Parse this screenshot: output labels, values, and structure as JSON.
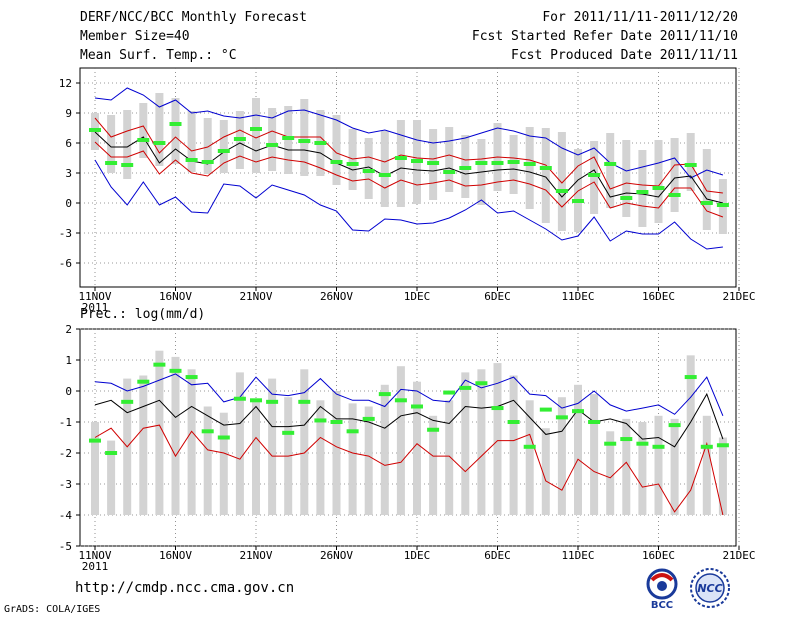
{
  "header": {
    "title": "DERF/NCC/BCC Monthly Forecast",
    "member_size": "Member Size=40",
    "variable1": "Mean Surf. Temp.: °C",
    "period": "For 2011/11/11-2011/12/20",
    "started": "Fcst Started Refer Date 2011/11/10",
    "produced": "Fcst Produced Date 2011/11/11"
  },
  "footer": {
    "url": "http://cmdp.ncc.cma.gov.cn",
    "grads": "GrADS: COLA/IGES",
    "logo1_text": "BCC",
    "logo2_text": "NCC"
  },
  "colors": {
    "max": "#0000d0",
    "upper": "#d00000",
    "mean": "#000000",
    "box": "#d3d3d3",
    "obs": "#33ee33"
  },
  "chart_data": [
    {
      "type": "line",
      "title": "Mean Surf. Temp.: °C",
      "x_tick_labels": [
        "11NOV",
        "16NOV",
        "21NOV",
        "26NOV",
        "1DEC",
        "6DEC",
        "11DEC",
        "16DEC",
        "21DEC"
      ],
      "x_year_label": "2011",
      "y_ticks": [
        12,
        9,
        6,
        3,
        0,
        -3,
        -6
      ],
      "ylim": [
        -8.4,
        13.5
      ],
      "days": 40,
      "series": [
        {
          "name": "max",
          "values": [
            10.5,
            10.3,
            11.5,
            10.8,
            9.6,
            10.3,
            9.0,
            9.2,
            8.7,
            8.5,
            8.8,
            8.5,
            9.2,
            9.3,
            8.8,
            8.3,
            7.5,
            7.0,
            7.3,
            6.8,
            6.3,
            6.0,
            6.2,
            6.5,
            7.0,
            7.5,
            7.2,
            6.7,
            6.5,
            5.5,
            4.8,
            5.5,
            4.0,
            3.2,
            3.6,
            4.0,
            4.5,
            2.5,
            3.3,
            2.8
          ]
        },
        {
          "name": "upper",
          "values": [
            8.5,
            6.6,
            7.2,
            7.7,
            5.0,
            6.6,
            5.2,
            5.6,
            6.6,
            7.3,
            6.5,
            7.2,
            6.6,
            6.6,
            6.6,
            5.0,
            4.4,
            4.6,
            4.1,
            4.8,
            4.5,
            4.4,
            4.8,
            4.3,
            4.4,
            4.6,
            4.5,
            4.3,
            3.8,
            2.0,
            3.7,
            4.6,
            1.4,
            2.0,
            1.8,
            1.7,
            3.8,
            3.9,
            1.2,
            1.0
          ]
        },
        {
          "name": "mean",
          "values": [
            7.1,
            5.6,
            5.6,
            6.6,
            4.0,
            5.4,
            4.2,
            3.9,
            5.1,
            6.0,
            5.2,
            5.8,
            5.3,
            5.3,
            5.0,
            4.0,
            3.3,
            3.6,
            2.7,
            3.5,
            3.3,
            3.2,
            3.5,
            2.9,
            3.1,
            3.3,
            3.4,
            3.1,
            2.6,
            0.6,
            2.3,
            3.3,
            0.6,
            1.0,
            0.9,
            0.6,
            2.5,
            2.7,
            0.4,
            0.0
          ]
        },
        {
          "name": "lower",
          "values": [
            6.1,
            4.6,
            4.6,
            5.2,
            2.9,
            4.3,
            3.0,
            2.7,
            4.0,
            4.7,
            4.1,
            4.6,
            4.3,
            4.1,
            3.5,
            2.8,
            2.2,
            2.4,
            1.5,
            2.3,
            1.8,
            2.0,
            2.3,
            1.7,
            1.8,
            2.1,
            2.3,
            1.9,
            1.3,
            -0.4,
            1.2,
            2.1,
            -0.5,
            0.0,
            -0.3,
            -0.5,
            1.5,
            1.5,
            -0.8,
            -1.4
          ]
        },
        {
          "name": "min",
          "values": [
            4.3,
            1.6,
            -0.2,
            2.1,
            -0.2,
            0.6,
            -0.9,
            -1.0,
            1.9,
            1.7,
            0.5,
            1.8,
            1.3,
            0.8,
            -0.2,
            -0.8,
            -2.7,
            -2.8,
            -1.6,
            -1.7,
            -2.1,
            -2.0,
            -1.5,
            -0.7,
            0.3,
            -1.0,
            -0.8,
            -1.7,
            -2.6,
            -3.7,
            -3.3,
            -1.4,
            -3.8,
            -2.8,
            -3.1,
            -3.1,
            -1.9,
            -3.6,
            -4.6,
            -4.4
          ]
        },
        {
          "name": "obs",
          "values": [
            7.3,
            4.0,
            3.8,
            6.3,
            6.0,
            7.9,
            4.3,
            4.1,
            5.2,
            6.4,
            7.4,
            5.8,
            6.5,
            6.2,
            6.0,
            4.1,
            3.9,
            3.2,
            2.8,
            4.5,
            4.2,
            4.0,
            3.1,
            3.5,
            4.0,
            4.0,
            4.1,
            3.9,
            3.5,
            1.2,
            0.2,
            2.8,
            3.9,
            0.5,
            1.1,
            1.5,
            0.8,
            3.8,
            0.0,
            -0.2
          ]
        },
        {
          "name": "box_top",
          "values": [
            9.0,
            8.8,
            9.3,
            10.0,
            11.0,
            10.5,
            9.2,
            8.5,
            8.3,
            9.2,
            10.5,
            9.5,
            9.7,
            10.4,
            9.3,
            8.8,
            7.4,
            6.5,
            7.2,
            8.3,
            8.3,
            7.4,
            7.6,
            6.8,
            6.4,
            8.0,
            6.8,
            7.6,
            7.5,
            7.1,
            5.4,
            6.2,
            7.0,
            6.3,
            5.3,
            6.3,
            6.5,
            7.0,
            5.4,
            2.4
          ]
        },
        {
          "name": "box_bottom",
          "values": [
            5.3,
            3.0,
            2.4,
            4.5,
            3.7,
            3.9,
            3.1,
            2.9,
            3.0,
            3.4,
            3.0,
            3.2,
            2.9,
            2.7,
            2.7,
            1.8,
            1.3,
            0.4,
            -0.4,
            -0.4,
            -0.1,
            0.3,
            1.1,
            0.5,
            -0.2,
            1.2,
            0.9,
            -0.6,
            -2.0,
            -2.8,
            -2.9,
            -1.1,
            -0.5,
            -1.4,
            -2.4,
            -2.0,
            -0.9,
            1.2,
            -2.7,
            -3.1
          ]
        }
      ]
    },
    {
      "type": "line",
      "title": "Prec.: log(mm/d)",
      "x_tick_labels": [
        "11NOV",
        "16NOV",
        "21NOV",
        "26NOV",
        "1DEC",
        "6DEC",
        "11DEC",
        "16DEC",
        "21DEC"
      ],
      "x_year_label": "2011",
      "y_ticks": [
        2,
        1,
        0,
        -1,
        -2,
        -3,
        -4,
        -5
      ],
      "ylim": [
        -5,
        2
      ],
      "days": 40,
      "series": [
        {
          "name": "max",
          "values": [
            0.3,
            0.25,
            0.0,
            0.15,
            0.35,
            0.55,
            0.2,
            0.25,
            -0.35,
            -0.2,
            0.45,
            -0.1,
            -0.15,
            -0.05,
            0.4,
            -0.1,
            -0.3,
            -0.3,
            -0.5,
            0.05,
            0.0,
            -0.3,
            -0.35,
            0.35,
            0.1,
            0.25,
            0.45,
            -0.1,
            -0.15,
            -0.55,
            -0.4,
            0.0,
            -0.45,
            -0.65,
            -0.55,
            -0.45,
            -0.75,
            -0.2,
            0.45,
            -0.8
          ]
        },
        {
          "name": "upper",
          "values": [
            -1.5,
            -1.2,
            -1.8,
            -1.2,
            -1.1,
            -2.1,
            -1.3,
            -1.9,
            -2.0,
            -2.2,
            -1.5,
            -2.1,
            -2.1,
            -2.0,
            -1.5,
            -1.8,
            -2.0,
            -2.1,
            -2.4,
            -2.3,
            -1.7,
            -2.1,
            -2.1,
            -2.6,
            -2.1,
            -1.6,
            -1.6,
            -1.4,
            -2.9,
            -3.2,
            -2.2,
            -2.6,
            -2.8,
            -2.3,
            -3.1,
            -3.0,
            -3.9,
            -3.2,
            -1.7,
            -4.0
          ]
        },
        {
          "name": "mean",
          "values": [
            -0.45,
            -0.3,
            -0.7,
            -0.5,
            -0.3,
            -0.85,
            -0.5,
            -0.8,
            -1.1,
            -1.05,
            -0.5,
            -1.15,
            -1.15,
            -1.1,
            -0.5,
            -0.9,
            -0.9,
            -1.0,
            -1.2,
            -0.8,
            -0.7,
            -0.95,
            -1.05,
            -0.5,
            -0.55,
            -0.5,
            -0.3,
            -0.85,
            -1.4,
            -1.3,
            -0.6,
            -1.0,
            -0.9,
            -1.05,
            -1.55,
            -1.5,
            -1.8,
            -1.0,
            -0.1,
            -1.55
          ]
        },
        {
          "name": "obs",
          "values": [
            -1.6,
            -2.0,
            -0.35,
            0.3,
            0.85,
            0.65,
            0.45,
            -1.3,
            -1.5,
            -0.25,
            -0.3,
            -0.35,
            -1.35,
            -0.35,
            -0.95,
            -1.0,
            -1.3,
            -0.9,
            -0.1,
            -0.3,
            -0.5,
            -1.25,
            -0.05,
            0.1,
            0.25,
            -0.55,
            -1.0,
            -1.8,
            -0.6,
            -0.85,
            -0.65,
            -1.0,
            -1.7,
            -1.55,
            -1.7,
            -1.8,
            -1.1,
            0.45,
            -1.8,
            -1.75
          ]
        },
        {
          "name": "box_top",
          "values": [
            -1.0,
            -1.6,
            0.4,
            0.5,
            1.3,
            1.1,
            0.7,
            -0.5,
            -0.7,
            0.6,
            -0.3,
            0.4,
            -0.2,
            0.7,
            -0.3,
            0.0,
            -0.4,
            -0.5,
            0.2,
            0.8,
            0.3,
            -0.8,
            -0.3,
            0.6,
            0.7,
            0.9,
            0.5,
            -0.3,
            -1.2,
            -0.2,
            0.2,
            -0.1,
            -1.3,
            -0.9,
            -1.0,
            -0.8,
            -0.9,
            1.15,
            -0.8,
            -1.5
          ]
        },
        {
          "name": "box_bottom",
          "values": [
            -4.0,
            -4.0,
            -4.0,
            -4.0,
            -4.0,
            -4.0,
            -4.0,
            -4.0,
            -4.0,
            -4.0,
            -4.0,
            -4.0,
            -4.0,
            -4.0,
            -4.0,
            -4.0,
            -4.0,
            -4.0,
            -4.0,
            -4.0,
            -4.0,
            -4.0,
            -4.0,
            -4.0,
            -4.0,
            -4.0,
            -4.0,
            -4.0,
            -4.0,
            -4.0,
            -4.0,
            -4.0,
            -4.0,
            -4.0,
            -4.0,
            -4.0,
            -4.0,
            -4.0,
            -4.0,
            -4.0
          ]
        }
      ]
    }
  ]
}
